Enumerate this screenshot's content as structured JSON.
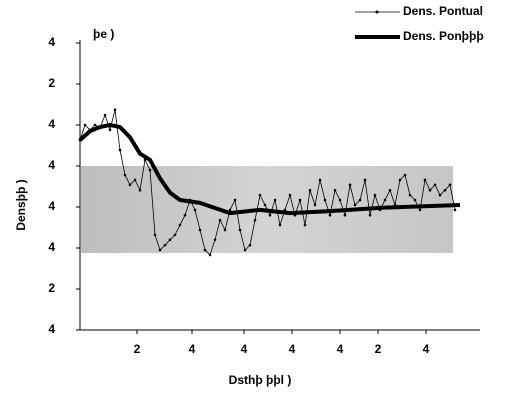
{
  "chart_data": {
    "type": "line",
    "title": "þe )",
    "x_label": "Dsthþ þþl )",
    "y_label": "Densþþ )",
    "xlim": [
      0,
      8
    ],
    "ylim": [
      0,
      7
    ],
    "xticks": [
      {
        "value": 1.14,
        "label": "2"
      },
      {
        "value": 2.24,
        "label": "4"
      },
      {
        "value": 3.28,
        "label": "4"
      },
      {
        "value": 4.24,
        "label": "4"
      },
      {
        "value": 5.2,
        "label": "4"
      },
      {
        "value": 5.96,
        "label": "2"
      },
      {
        "value": 6.92,
        "label": "4"
      }
    ],
    "yticks": [
      {
        "value": 0,
        "label": "4"
      },
      {
        "value": 1,
        "label": "2"
      },
      {
        "value": 2,
        "label": "4"
      },
      {
        "value": 3,
        "label": "4"
      },
      4,
      {
        "value": 5,
        "label": "4"
      },
      {
        "value": 6,
        "label": "2"
      },
      {
        "value": 7,
        "label": "4"
      }
    ],
    "legend": "top-right",
    "series": [
      {
        "name": "Dens. Pontual",
        "color": "#000000",
        "style": "thin-markers",
        "x": [
          0,
          0.1,
          0.2,
          0.3,
          0.4,
          0.5,
          0.6,
          0.7,
          0.8,
          0.9,
          1.0,
          1.1,
          1.2,
          1.3,
          1.4,
          1.5,
          1.6,
          1.7,
          1.8,
          1.9,
          2.0,
          2.1,
          2.2,
          2.3,
          2.4,
          2.5,
          2.6,
          2.7,
          2.8,
          2.9,
          3.0,
          3.1,
          3.2,
          3.3,
          3.4,
          3.5,
          3.6,
          3.7,
          3.8,
          3.9,
          4.0,
          4.1,
          4.2,
          4.3,
          4.4,
          4.5,
          4.6,
          4.7,
          4.8,
          4.9,
          5.0,
          5.1,
          5.2,
          5.3,
          5.4,
          5.5,
          5.6,
          5.7,
          5.8,
          5.9,
          6.0,
          6.1,
          6.2,
          6.3,
          6.4,
          6.5,
          6.6,
          6.7,
          6.8,
          6.9,
          7.0,
          7.1,
          7.2,
          7.3,
          7.4,
          7.5
        ],
        "values": [
          4.63,
          5.0,
          4.88,
          5.0,
          4.93,
          5.24,
          4.88,
          5.37,
          4.39,
          3.78,
          3.54,
          3.66,
          3.41,
          4.15,
          3.9,
          2.32,
          1.95,
          2.07,
          2.2,
          2.32,
          2.56,
          2.8,
          3.17,
          2.93,
          2.44,
          1.95,
          1.83,
          2.2,
          2.68,
          2.44,
          2.93,
          3.17,
          2.44,
          1.95,
          2.07,
          2.68,
          3.29,
          3.05,
          2.8,
          3.17,
          2.56,
          2.93,
          3.29,
          2.8,
          3.17,
          2.56,
          3.41,
          3.05,
          3.66,
          3.17,
          2.8,
          3.41,
          3.17,
          2.8,
          3.54,
          3.05,
          3.17,
          3.66,
          2.8,
          3.29,
          2.93,
          3.17,
          3.41,
          3.05,
          3.66,
          3.78,
          3.29,
          3.17,
          2.93,
          3.66,
          3.41,
          3.54,
          3.29,
          3.41,
          3.54,
          2.93
        ]
      },
      {
        "name": "Dens. Ponþþþ",
        "color": "#000000",
        "style": "thick",
        "x": [
          0,
          0.2,
          0.4,
          0.6,
          0.8,
          1.0,
          1.2,
          1.4,
          1.6,
          1.8,
          2.0,
          2.4,
          3.0,
          3.6,
          4.2,
          5.0,
          6.0,
          7.6
        ],
        "values": [
          4.63,
          4.85,
          4.95,
          5.0,
          4.95,
          4.7,
          4.3,
          4.15,
          3.7,
          3.35,
          3.17,
          3.1,
          2.85,
          2.93,
          2.85,
          2.9,
          2.98,
          3.05
        ]
      }
    ]
  }
}
